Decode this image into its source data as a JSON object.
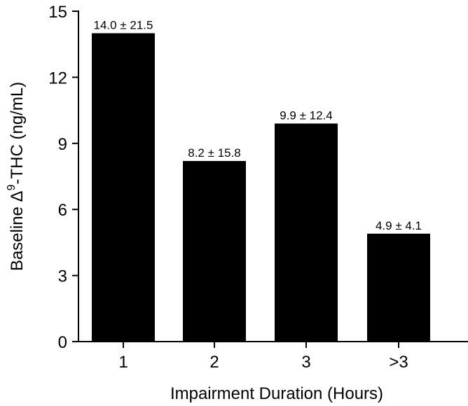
{
  "chart_data": {
    "type": "bar",
    "title": "",
    "xlabel": "Impairment Duration (Hours)",
    "ylabel": "Baseline Δ9-THC (ng/mL)",
    "ylabel_parts": {
      "prefix": "Baseline Δ",
      "superscript": "9",
      "suffix": "-THC (ng/mL)"
    },
    "categories": [
      "1",
      "2",
      "3",
      ">3"
    ],
    "values": [
      14.0,
      8.2,
      9.9,
      4.9
    ],
    "sd": [
      21.5,
      15.8,
      12.4,
      4.1
    ],
    "bar_labels": [
      "14.0 ± 21.5",
      "8.2 ± 15.8",
      "9.9 ± 12.4",
      "4.9 ± 4.1"
    ],
    "ylim": [
      0,
      15
    ],
    "yticks": [
      "0",
      "3",
      "6",
      "9",
      "12",
      "15"
    ],
    "grid": false,
    "legend": null,
    "bar_color": "#000000"
  }
}
